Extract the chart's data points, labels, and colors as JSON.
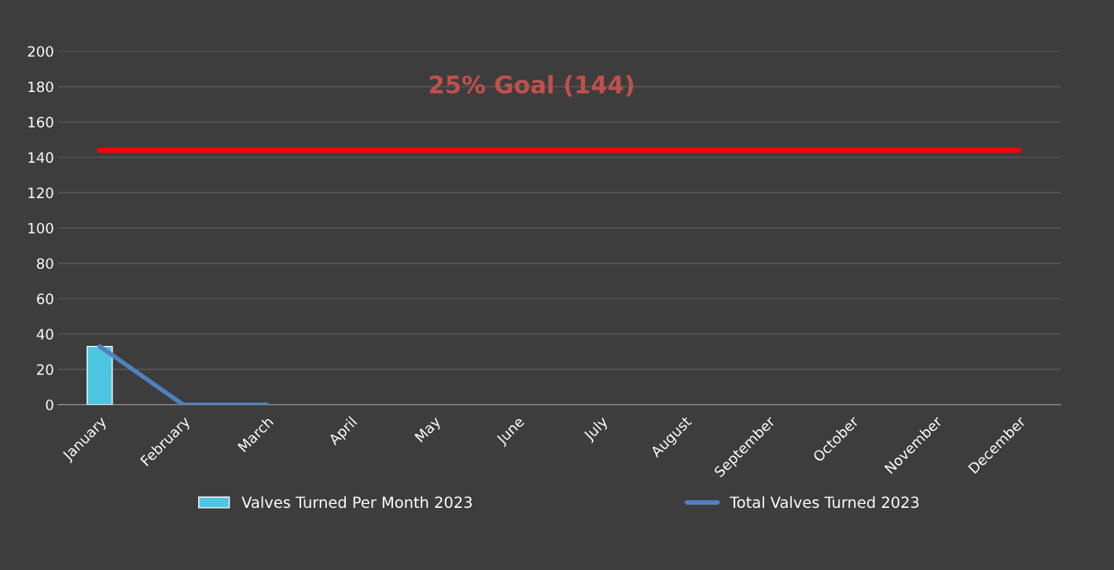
{
  "chart_data": {
    "type": "bar",
    "categories": [
      "January",
      "February",
      "March",
      "April",
      "May",
      "June",
      "July",
      "August",
      "September",
      "October",
      "November",
      "December"
    ],
    "series": [
      {
        "name": "Valves Turned Per Month 2023",
        "color": "#4fc6df",
        "values": [
          33,
          null,
          null,
          null,
          null,
          null,
          null,
          null,
          null,
          null,
          null,
          null
        ]
      },
      {
        "name": "Total Valves Turned 2023",
        "type": "line",
        "color": "#4f81bd",
        "values": [
          33,
          0,
          0,
          null,
          null,
          null,
          null,
          null,
          null,
          null,
          null,
          null
        ]
      }
    ],
    "ref_lines": [
      {
        "axis": "y",
        "value": 144,
        "label": "25% Goal (144)",
        "color": "#ff0000"
      }
    ],
    "ylim": [
      0,
      200
    ],
    "yticks": [
      0,
      20,
      40,
      60,
      80,
      100,
      120,
      140,
      160,
      180,
      200
    ],
    "grid": "y",
    "legend": "bottom"
  }
}
